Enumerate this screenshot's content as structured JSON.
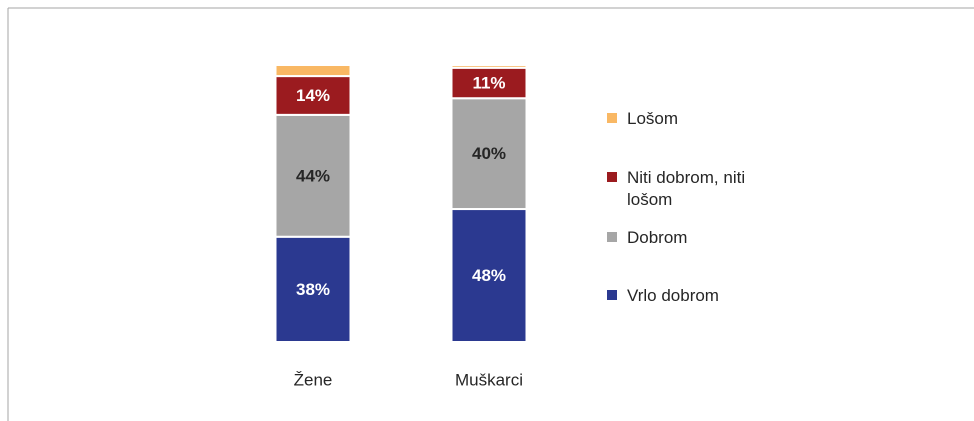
{
  "chart_data": {
    "type": "stacked_bar",
    "categories": [
      "Žene",
      "Muškarci"
    ],
    "series": [
      {
        "name": "Vrlo dobrom",
        "color": "#2b3990",
        "label_color": "#ffffff",
        "values": [
          38,
          48
        ],
        "value_labels": [
          "38%",
          "48%"
        ]
      },
      {
        "name": "Dobrom",
        "color": "#a6a6a6",
        "label_color": "#262626",
        "values": [
          44,
          40
        ],
        "value_labels": [
          "44%",
          "40%"
        ]
      },
      {
        "name": "Niti dobrom, niti lošom",
        "color": "#9b1b1f",
        "label_color": "#ffffff",
        "values": [
          14,
          11
        ],
        "value_labels": [
          "14%",
          "11%"
        ]
      },
      {
        "name": "Lošom",
        "color": "#f9b864",
        "values": [
          4,
          1
        ]
      }
    ],
    "ylim": [
      0,
      100
    ],
    "legend": "right"
  }
}
